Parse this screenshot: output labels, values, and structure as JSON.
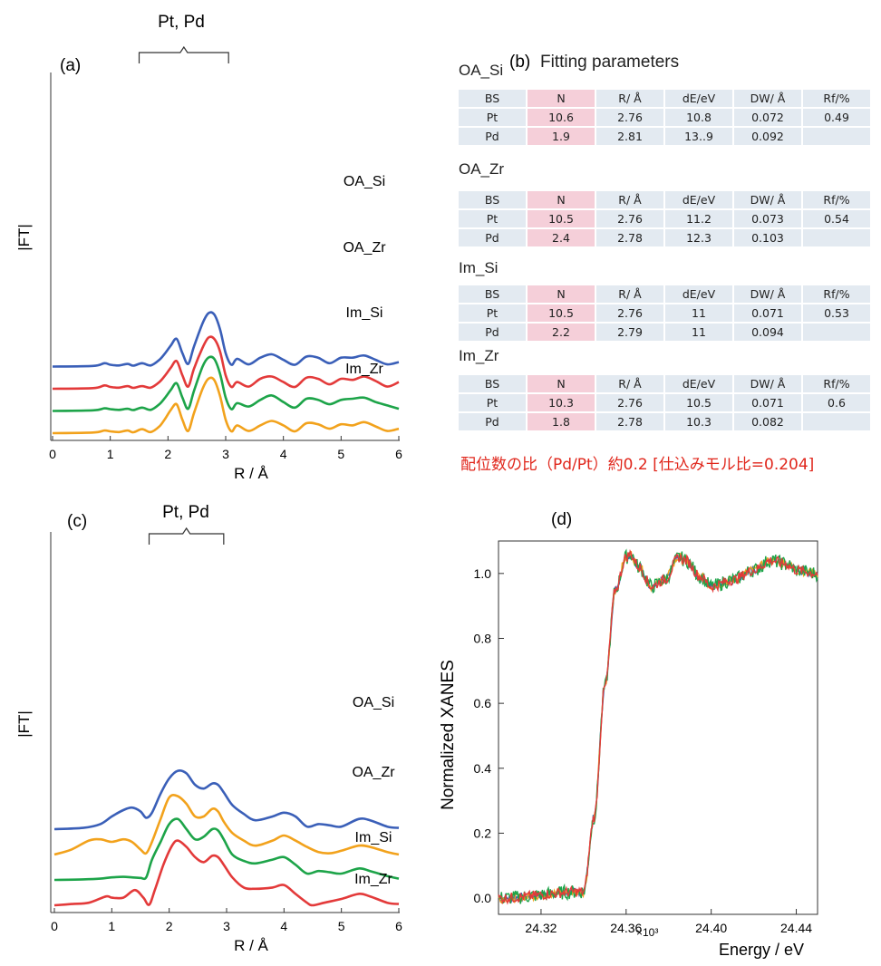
{
  "panel_labels": {
    "a": "(a)",
    "b": "(b)",
    "c": "(c)",
    "d": "(d)"
  },
  "colors": {
    "OA_Si": "#3a5fb8",
    "OA_Zr_a": "#e33a3a",
    "Im_Si": "#1da449",
    "Im_Zr_a": "#f2a21c",
    "OA_Zr_c": "#f2a21c",
    "Im_Zr_c": "#e33a3a",
    "note": "#e0261b"
  },
  "panel_b": {
    "title": "Fitting parameters",
    "headers": [
      "BS",
      "N",
      "R/ Å",
      "dE/eV",
      "DW/ Å",
      "Rf/%"
    ],
    "tables": [
      {
        "name": "OA_Si",
        "rows": [
          [
            "Pt",
            "10.6",
            "2.76",
            "10.8",
            "0.072",
            "0.49"
          ],
          [
            "Pd",
            "1.9",
            "2.81",
            "13..9",
            "0.092",
            ""
          ]
        ]
      },
      {
        "name": "OA_Zr",
        "rows": [
          [
            "Pt",
            "10.5",
            "2.76",
            "11.2",
            "0.073",
            "0.54"
          ],
          [
            "Pd",
            "2.4",
            "2.78",
            "12.3",
            "0.103",
            ""
          ]
        ]
      },
      {
        "name": "Im_Si",
        "rows": [
          [
            "Pt",
            "10.5",
            "2.76",
            "11",
            "0.071",
            "0.53"
          ],
          [
            "Pd",
            "2.2",
            "2.79",
            "11",
            "0.094",
            ""
          ]
        ]
      },
      {
        "name": "Im_Zr",
        "rows": [
          [
            "Pt",
            "10.3",
            "2.76",
            "10.5",
            "0.071",
            "0.6"
          ],
          [
            "Pd",
            "1.8",
            "2.78",
            "10.3",
            "0.082",
            ""
          ]
        ]
      }
    ],
    "note": "配位数の比（Pd/Pt）約0.2 [仕込みモル比=0.204]"
  },
  "chart_data": [
    {
      "id": "a",
      "type": "line",
      "ylabel": "|FT|",
      "xlabel": "R / Å",
      "xlim": [
        0,
        6
      ],
      "xticks": [
        "0",
        "1",
        "2",
        "3",
        "4",
        "5",
        "6"
      ],
      "bracket_label": "Pt, Pd",
      "bracket_range": [
        1.5,
        3.05
      ],
      "offsets": [
        3.0,
        2.0,
        1.0,
        0.0
      ],
      "series": [
        {
          "name": "OA_Si",
          "color": "#3a5fb8",
          "x": [
            0,
            0.7,
            0.9,
            1.0,
            1.15,
            1.3,
            1.4,
            1.55,
            1.7,
            1.85,
            1.95,
            2.05,
            2.15,
            2.25,
            2.35,
            2.45,
            2.6,
            2.7,
            2.8,
            2.9,
            3.0,
            3.1,
            3.2,
            3.4,
            3.6,
            3.8,
            4.0,
            4.2,
            4.4,
            4.6,
            4.8,
            5.0,
            5.2,
            5.4,
            5.6,
            5.8,
            6.0
          ],
          "y": [
            0,
            0.03,
            0.15,
            0.08,
            0.05,
            0.12,
            0.04,
            0.15,
            0.05,
            0.3,
            0.6,
            0.95,
            1.25,
            0.6,
            0.12,
            0.9,
            1.95,
            2.4,
            2.35,
            1.7,
            0.6,
            0.08,
            0.35,
            0.1,
            0.4,
            0.55,
            0.3,
            0.08,
            0.45,
            0.4,
            0.15,
            0.4,
            0.4,
            0.5,
            0.3,
            0.1,
            0.2
          ]
        },
        {
          "name": "OA_Zr",
          "color": "#e33a3a",
          "x": [
            0,
            0.7,
            0.9,
            1.0,
            1.15,
            1.3,
            1.4,
            1.55,
            1.7,
            1.85,
            1.95,
            2.05,
            2.15,
            2.25,
            2.35,
            2.45,
            2.6,
            2.7,
            2.8,
            2.9,
            3.0,
            3.1,
            3.2,
            3.4,
            3.6,
            3.8,
            4.0,
            4.2,
            4.4,
            4.6,
            4.8,
            5.0,
            5.2,
            5.4,
            5.6,
            5.8,
            6.0
          ],
          "y": [
            0,
            0.03,
            0.15,
            0.08,
            0.05,
            0.12,
            0.04,
            0.12,
            0.05,
            0.3,
            0.6,
            0.95,
            1.25,
            0.6,
            0.1,
            0.9,
            1.85,
            2.3,
            2.25,
            1.7,
            0.6,
            0.08,
            0.3,
            0.1,
            0.45,
            0.55,
            0.3,
            0.08,
            0.5,
            0.45,
            0.2,
            0.45,
            0.4,
            0.55,
            0.35,
            0.1,
            0.3
          ]
        },
        {
          "name": "Im_Si",
          "color": "#1da449",
          "x": [
            0,
            0.7,
            0.9,
            1.0,
            1.15,
            1.3,
            1.4,
            1.55,
            1.7,
            1.85,
            1.95,
            2.05,
            2.15,
            2.25,
            2.35,
            2.45,
            2.6,
            2.7,
            2.8,
            2.9,
            3.0,
            3.1,
            3.2,
            3.4,
            3.6,
            3.8,
            4.0,
            4.2,
            4.4,
            4.6,
            4.8,
            5.0,
            5.2,
            5.4,
            5.6,
            5.8,
            6.0
          ],
          "y": [
            0,
            0.03,
            0.12,
            0.08,
            0.05,
            0.1,
            0.04,
            0.15,
            0.05,
            0.3,
            0.6,
            0.95,
            1.25,
            0.6,
            0.1,
            0.9,
            2.0,
            2.4,
            2.35,
            1.7,
            0.6,
            0.08,
            0.35,
            0.2,
            0.5,
            0.7,
            0.4,
            0.15,
            0.55,
            0.5,
            0.3,
            0.5,
            0.55,
            0.6,
            0.4,
            0.25,
            0.1
          ]
        },
        {
          "name": "Im_Zr",
          "color": "#f2a21c",
          "x": [
            0,
            0.7,
            0.9,
            1.0,
            1.15,
            1.3,
            1.4,
            1.55,
            1.7,
            1.85,
            1.95,
            2.05,
            2.15,
            2.25,
            2.35,
            2.45,
            2.6,
            2.7,
            2.8,
            2.9,
            3.0,
            3.1,
            3.2,
            3.4,
            3.6,
            3.8,
            4.0,
            4.2,
            4.4,
            4.6,
            4.8,
            5.0,
            5.2,
            5.4,
            5.6,
            5.8,
            6.0
          ],
          "y": [
            0,
            0.03,
            0.12,
            0.08,
            0.05,
            0.12,
            0.04,
            0.18,
            0.05,
            0.3,
            0.65,
            1.05,
            1.3,
            0.6,
            0.1,
            0.9,
            2.0,
            2.45,
            2.4,
            1.7,
            0.6,
            0.08,
            0.35,
            0.1,
            0.35,
            0.55,
            0.35,
            0.08,
            0.45,
            0.4,
            0.2,
            0.4,
            0.35,
            0.5,
            0.3,
            0.1,
            0.2
          ]
        }
      ]
    },
    {
      "id": "c",
      "type": "line",
      "ylabel": "|FT|",
      "xlabel": "R / Å",
      "xlim": [
        0,
        6
      ],
      "xticks": [
        "0",
        "1",
        "2",
        "3",
        "4",
        "5",
        "6"
      ],
      "bracket_label": "Pt, Pd",
      "bracket_range": [
        1.65,
        2.95
      ],
      "offsets": [
        3.0,
        2.0,
        1.0,
        0.0
      ],
      "series": [
        {
          "name": "OA_Si",
          "color": "#3a5fb8",
          "x": [
            0,
            0.5,
            0.8,
            1.0,
            1.2,
            1.35,
            1.5,
            1.6,
            1.7,
            1.85,
            2.0,
            2.15,
            2.3,
            2.45,
            2.6,
            2.75,
            2.85,
            2.95,
            3.1,
            3.3,
            3.5,
            3.8,
            4.0,
            4.2,
            4.4,
            4.6,
            4.8,
            5.0,
            5.3,
            5.5,
            5.8,
            6.0
          ],
          "y": [
            0,
            0.05,
            0.2,
            0.5,
            0.75,
            0.85,
            0.7,
            0.45,
            0.65,
            1.4,
            2.0,
            2.3,
            2.2,
            1.75,
            1.6,
            1.8,
            1.75,
            1.45,
            0.95,
            0.6,
            0.35,
            0.5,
            0.65,
            0.5,
            0.1,
            0.2,
            0.15,
            0.1,
            0.4,
            0.35,
            0.1,
            0.05
          ]
        },
        {
          "name": "OA_Zr",
          "color": "#f2a21c",
          "x": [
            0,
            0.3,
            0.6,
            0.8,
            1.0,
            1.2,
            1.35,
            1.5,
            1.6,
            1.7,
            1.85,
            2.0,
            2.15,
            2.3,
            2.45,
            2.6,
            2.75,
            2.85,
            2.95,
            3.1,
            3.3,
            3.5,
            3.8,
            4.0,
            4.2,
            4.4,
            4.6,
            4.8,
            5.0,
            5.3,
            5.5,
            5.8,
            6.0
          ],
          "y": [
            0,
            0.2,
            0.55,
            0.6,
            0.5,
            0.6,
            0.5,
            0.2,
            0.05,
            0.5,
            1.4,
            2.25,
            2.3,
            2.0,
            1.5,
            1.5,
            1.8,
            1.7,
            1.3,
            0.85,
            0.55,
            0.35,
            0.55,
            0.75,
            0.55,
            0.3,
            0.1,
            0.05,
            0.15,
            0.35,
            0.3,
            0.1,
            0.0
          ]
        },
        {
          "name": "Im_Si",
          "color": "#1da449",
          "x": [
            0,
            0.5,
            0.8,
            1.0,
            1.2,
            1.35,
            1.5,
            1.6,
            1.7,
            1.85,
            2.0,
            2.15,
            2.3,
            2.45,
            2.6,
            2.75,
            2.85,
            2.95,
            3.1,
            3.3,
            3.5,
            3.8,
            4.0,
            4.2,
            4.4,
            4.6,
            4.8,
            5.0,
            5.3,
            5.5,
            5.8,
            6.0
          ],
          "y": [
            0,
            0.02,
            0.05,
            0.1,
            0.12,
            0.1,
            0.08,
            0.1,
            0.8,
            1.5,
            2.2,
            2.4,
            2.0,
            1.6,
            1.7,
            2.0,
            1.95,
            1.6,
            1.0,
            0.75,
            0.65,
            0.8,
            0.9,
            0.6,
            0.25,
            0.35,
            0.3,
            0.25,
            0.45,
            0.35,
            0.15,
            0.05
          ]
        },
        {
          "name": "Im_Zr",
          "color": "#e33a3a",
          "x": [
            0,
            0.3,
            0.6,
            0.9,
            1.0,
            1.2,
            1.4,
            1.55,
            1.65,
            1.75,
            1.9,
            2.05,
            2.15,
            2.3,
            2.45,
            2.6,
            2.75,
            2.85,
            2.95,
            3.1,
            3.3,
            3.5,
            3.8,
            4.0,
            4.2,
            4.4,
            4.5,
            4.7,
            5.0,
            5.3,
            5.5,
            5.8,
            6.0
          ],
          "y": [
            0,
            0.05,
            0.1,
            0.35,
            0.3,
            0.3,
            0.6,
            0.3,
            0.02,
            0.6,
            1.6,
            2.35,
            2.55,
            2.3,
            1.9,
            1.7,
            1.95,
            1.9,
            1.6,
            1.1,
            0.7,
            0.65,
            0.7,
            0.8,
            0.45,
            0.1,
            0.0,
            0.1,
            0.25,
            0.45,
            0.35,
            0.1,
            0.05
          ]
        }
      ]
    },
    {
      "id": "d",
      "type": "line",
      "ylabel": "Normalized XANES",
      "xlabel": "Energy / eV",
      "x_multiplier": "×10³",
      "xlim": [
        24.3,
        24.45
      ],
      "ylim": [
        -0.05,
        1.1
      ],
      "xticks": [
        "24.32",
        "24.36",
        "24.40",
        "24.44"
      ],
      "yticks": [
        "0.0",
        "0.2",
        "0.4",
        "0.6",
        "0.8",
        "1.0"
      ],
      "series": [
        {
          "name": "OA_Si",
          "color": "#3a5fb8"
        },
        {
          "name": "OA_Zr",
          "color": "#f2a21c"
        },
        {
          "name": "Im_Si",
          "color": "#1da449"
        },
        {
          "name": "Im_Zr",
          "color": "#e33a3a"
        }
      ],
      "x": [
        24.3,
        24.34,
        24.345,
        24.35,
        24.355,
        24.36,
        24.362,
        24.366,
        24.372,
        24.378,
        24.385,
        24.388,
        24.395,
        24.4,
        24.41,
        24.42,
        24.428,
        24.435,
        24.44,
        24.45
      ],
      "y": [
        0.0,
        0.02,
        0.25,
        0.65,
        0.95,
        1.05,
        1.06,
        1.02,
        0.96,
        0.98,
        1.05,
        1.04,
        0.99,
        0.96,
        0.98,
        1.01,
        1.04,
        1.03,
        1.01,
        1.0
      ]
    }
  ]
}
